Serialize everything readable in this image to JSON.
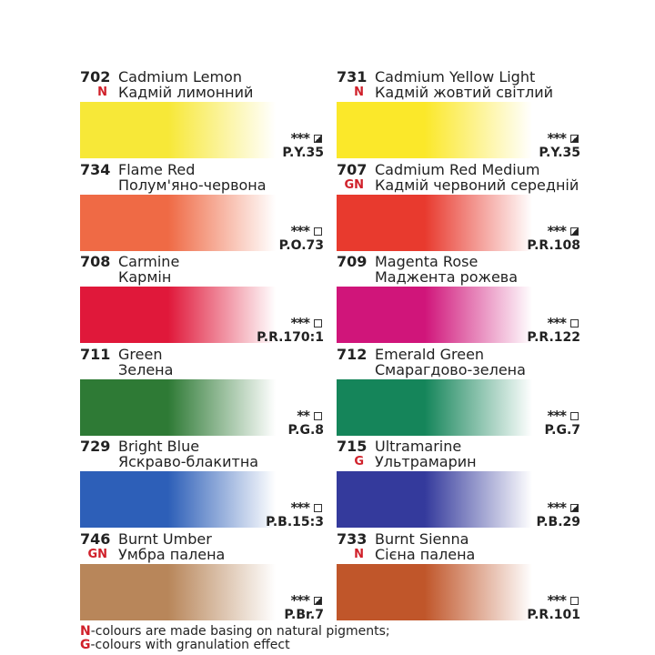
{
  "paints": [
    {
      "code": "702",
      "mark": "N",
      "en": "Cadmium Lemon",
      "ua": "Кадмій лимонний",
      "color": "#f7e838",
      "stars": "***",
      "transparency": "semi-opaque",
      "pigment": "P.Y.35"
    },
    {
      "code": "731",
      "mark": "N",
      "en": "Cadmium Yellow Light",
      "ua": "Кадмій жовтий світлий",
      "color": "#fbe82a",
      "stars": "***",
      "transparency": "semi-opaque",
      "pigment": "P.Y.35"
    },
    {
      "code": "734",
      "mark": "",
      "en": "Flame Red",
      "ua": "Полум'яно-червона",
      "color": "#ef6a45",
      "stars": "***",
      "transparency": "transparent",
      "pigment": "P.O.73"
    },
    {
      "code": "707",
      "mark": "GN",
      "en": "Cadmium Red Medium",
      "ua": "Кадмій червоний середній",
      "color": "#e83a2e",
      "stars": "***",
      "transparency": "semi-opaque",
      "pigment": "P.R.108"
    },
    {
      "code": "708",
      "mark": "",
      "en": "Carmine",
      "ua": "Кармін",
      "color": "#e0183a",
      "stars": "***",
      "transparency": "transparent",
      "pigment": "P.R.170:1"
    },
    {
      "code": "709",
      "mark": "",
      "en": "Magenta Rose",
      "ua": "Маджента рожева",
      "color": "#d0157a",
      "stars": "***",
      "transparency": "transparent",
      "pigment": "P.R.122"
    },
    {
      "code": "711",
      "mark": "",
      "en": "Green",
      "ua": "Зелена",
      "color": "#2e7a35",
      "stars": "**",
      "transparency": "transparent",
      "pigment": "P.G.8"
    },
    {
      "code": "712",
      "mark": "",
      "en": "Emerald Green",
      "ua": "Смарагдово-зелена",
      "color": "#15855a",
      "stars": "***",
      "transparency": "transparent",
      "pigment": "P.G.7"
    },
    {
      "code": "729",
      "mark": "",
      "en": "Bright Blue",
      "ua": "Яскраво-блакитна",
      "color": "#2d5fb8",
      "stars": "***",
      "transparency": "transparent",
      "pigment": "P.B.15:3"
    },
    {
      "code": "715",
      "mark": "G",
      "en": "Ultramarine",
      "ua": "Ультрамарин",
      "color": "#343a9c",
      "stars": "***",
      "transparency": "semi-opaque",
      "pigment": "P.B.29"
    },
    {
      "code": "746",
      "mark": "GN",
      "en": "Burnt Umber",
      "ua": "Умбра палена",
      "color": "#b8865a",
      "stars": "***",
      "transparency": "semi-opaque",
      "pigment": "P.Br.7"
    },
    {
      "code": "733",
      "mark": "N",
      "en": "Burnt Sienna",
      "ua": "Сієна палена",
      "color": "#c0562a",
      "stars": "***",
      "transparency": "transparent",
      "pigment": "P.R.101"
    }
  ],
  "legend": {
    "n_key": "N",
    "n_text": "-colours are made basing on natural pigments;",
    "g_key": "G",
    "g_text": "-colours with granulation effect"
  },
  "colors": {
    "mark": "#d0202a"
  }
}
